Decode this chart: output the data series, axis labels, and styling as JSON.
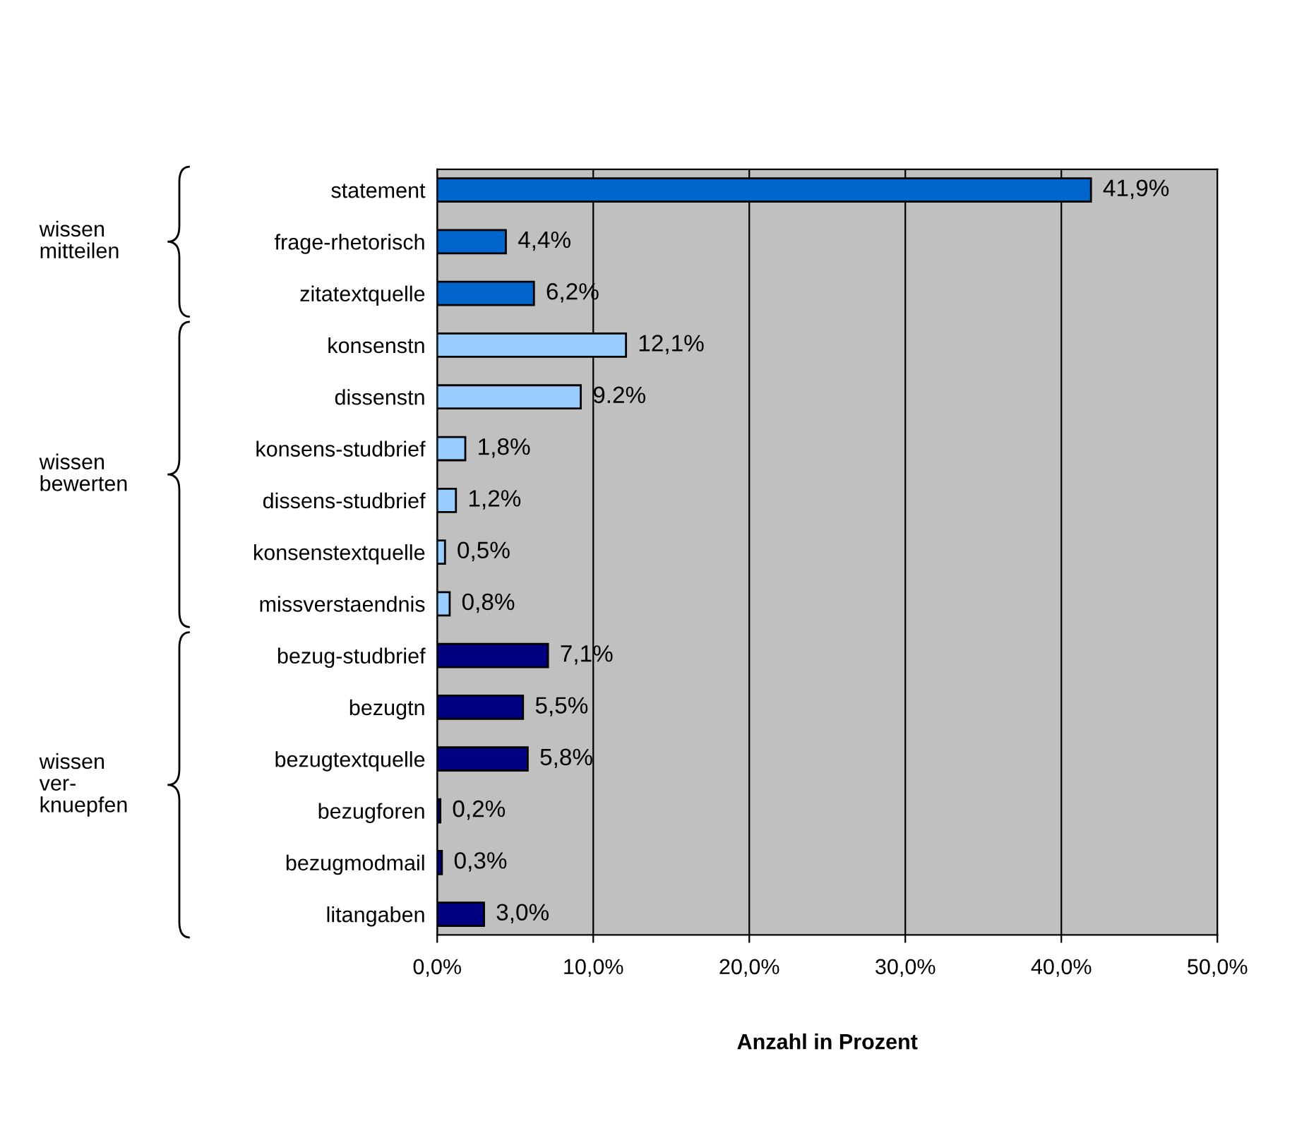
{
  "chart_data": {
    "type": "bar",
    "orientation": "horizontal",
    "xlabel": "Anzahl in Prozent",
    "categories": [
      "statement",
      "frage-rhetorisch",
      "zitatextquelle",
      "konsenstn",
      "dissenstn",
      "konsens-studbrief",
      "dissens-studbrief",
      "konsenstextquelle",
      "missverstaendnis",
      "bezug-studbrief",
      "bezugtn",
      "bezugtextquelle",
      "bezugforen",
      "bezugmodmail",
      "litangaben"
    ],
    "values": [
      41.9,
      4.4,
      6.2,
      12.1,
      9.2,
      1.8,
      1.2,
      0.5,
      0.8,
      7.1,
      5.5,
      5.8,
      0.2,
      0.3,
      3.0
    ],
    "value_labels": [
      "41,9%",
      "4,4%",
      "6,2%",
      "12,1%",
      "9.2%",
      "1,8%",
      "1,2%",
      "0,5%",
      "0,8%",
      "7,1%",
      "5,5%",
      "5,8%",
      "0,2%",
      "0,3%",
      "3,0%"
    ],
    "colors": [
      "#0066cc",
      "#0066cc",
      "#0066cc",
      "#99ccff",
      "#99ccff",
      "#99ccff",
      "#99ccff",
      "#99ccff",
      "#99ccff",
      "#000080",
      "#000080",
      "#000080",
      "#000080",
      "#000080",
      "#000080"
    ],
    "xlim": [
      0,
      50
    ],
    "xticks": [
      {
        "value": 0,
        "label": "0,0%"
      },
      {
        "value": 10,
        "label": "10,0%"
      },
      {
        "value": 20,
        "label": "20,0%"
      },
      {
        "value": 30,
        "label": "30,0%"
      },
      {
        "value": 40,
        "label": "40,0%"
      },
      {
        "value": 50,
        "label": "50,0%"
      }
    ],
    "grid": "x",
    "legend": false,
    "annotations": [
      "wissen\nmitteilen",
      "wissen\nbewerten",
      "wissen\nver-\nknuepfen"
    ]
  }
}
